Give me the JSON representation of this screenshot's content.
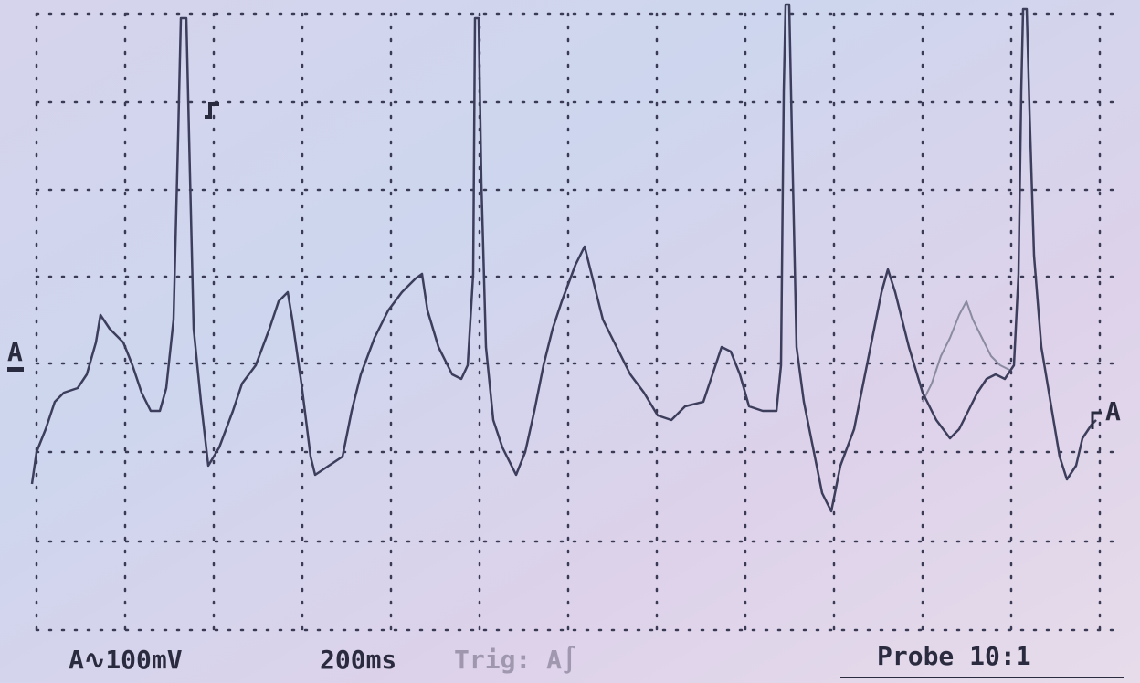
{
  "screen": {
    "marker_left": "A",
    "marker_right": "A"
  },
  "status_bar": {
    "scale": "A∿100mV",
    "timebase": "200ms",
    "trigger": "Trig: A∫",
    "probe": "Probe 10:1"
  }
}
